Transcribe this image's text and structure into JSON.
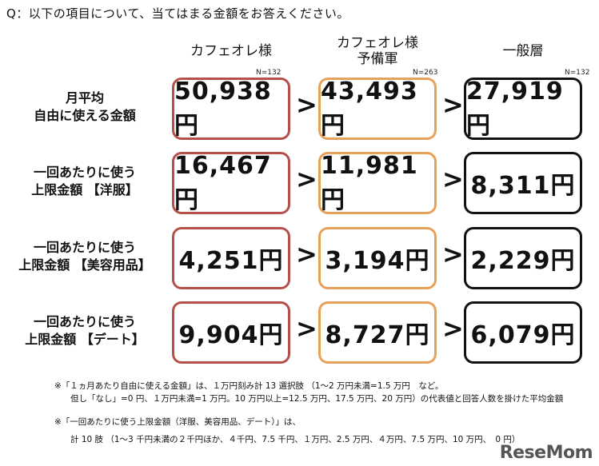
{
  "question": "Q：以下の項目について、当てはまる金額をお答えください。",
  "chart_data": {
    "type": "table",
    "columns": [
      {
        "label_lines": [
          "カフェオレ様"
        ],
        "n": "N=132",
        "color": "#b5514b"
      },
      {
        "label_lines": [
          "カフェオレ様",
          "予備軍"
        ],
        "n": "N=263",
        "color": "#e9a15a"
      },
      {
        "label_lines": [
          "一般層"
        ],
        "n": "N=132",
        "color": "#111111"
      }
    ],
    "rows": [
      {
        "label_lines": [
          "月平均",
          "自由に使える金額"
        ],
        "values": [
          "50,938円",
          "43,493円",
          "27,919円"
        ]
      },
      {
        "label_lines": [
          "一回あたりに使う",
          "上限金額 【洋服】"
        ],
        "values": [
          "16,467円",
          "11,981円",
          "8,311円"
        ]
      },
      {
        "label_lines": [
          "一回あたりに使う",
          "上限金額 【美容用品】"
        ],
        "values": [
          "4,251円",
          "3,194円",
          "2,229円"
        ]
      },
      {
        "label_lines": [
          "一回あたりに使う",
          "上限金額 【デート】"
        ],
        "values": [
          "9,904円",
          "8,727円",
          "6,079円"
        ]
      }
    ],
    "separator": ">"
  },
  "notes": [
    "※「１ヵ月あたり自由に使える金額」は、１万円刻み計 13 選択肢 （1～2 万円未満=1.5 万円　など。",
    "但し「なし」=0 円、１万円未満=1 万円。10 万円以上=12.5 万円、17.5 万円、20 万円）の代表値と回答人数を掛けた平均金額",
    "※「一回あたりに使う上限金額（洋服、美容用品、デート）」は、",
    "計 10 肢 （1～3 千円未満の２千円ほか、４千円、7.5 千円、１万円、2.5 万円、４万円、7.5 万円、10 万円、　0 円）"
  ],
  "logo": "ReseMom"
}
